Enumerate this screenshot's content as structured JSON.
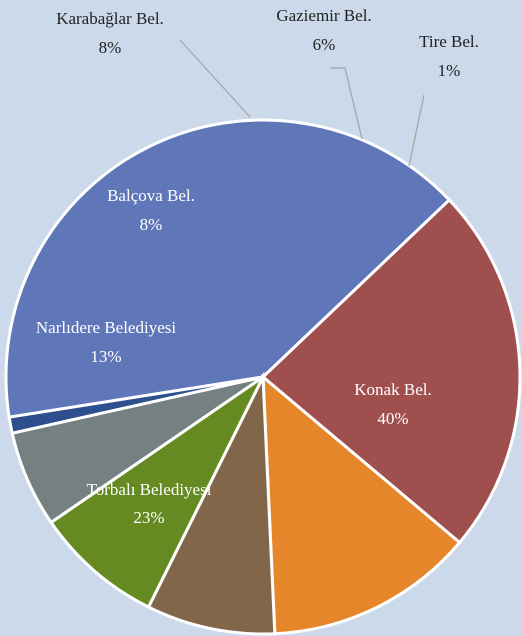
{
  "chart_data": {
    "type": "pie",
    "title": "",
    "start_angle_deg": 171,
    "direction": "clockwise",
    "legend": "none",
    "slices": [
      {
        "label": "Konak Bel.",
        "value": 40,
        "percent_label": "40%",
        "color": "#5f76b8",
        "label_placement": "inside"
      },
      {
        "label": "Torbalı Belediyesi",
        "value": 23,
        "percent_label": "23%",
        "color": "#a04f4f",
        "label_placement": "inside"
      },
      {
        "label": "Narlıdere Belediyesi",
        "value": 13,
        "percent_label": "13%",
        "color": "#e5862b",
        "label_placement": "inside"
      },
      {
        "label": "Balçova Bel.",
        "value": 8,
        "percent_label": "8%",
        "color": "#82664a",
        "label_placement": "inside"
      },
      {
        "label": "Karabağlar Bel.",
        "value": 8,
        "percent_label": "8%",
        "color": "#668a22",
        "label_placement": "outside"
      },
      {
        "label": "Gaziemir Bel.",
        "value": 6,
        "percent_label": "6%",
        "color": "#758080",
        "label_placement": "outside"
      },
      {
        "label": "Tire Bel.",
        "value": 1,
        "percent_label": "1%",
        "color": "#2e4f8e",
        "label_placement": "outside"
      }
    ]
  }
}
